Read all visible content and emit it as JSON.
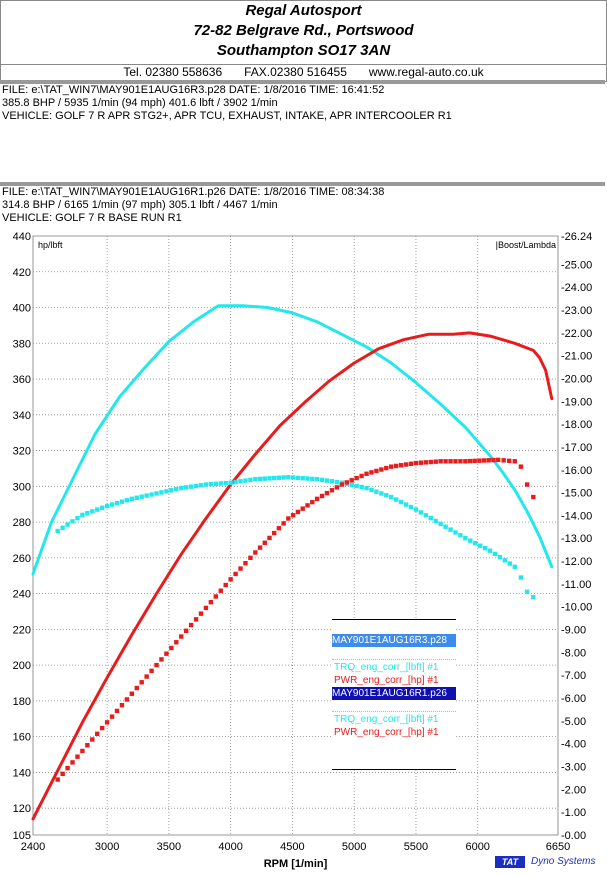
{
  "header": {
    "company": "Regal Autosport",
    "address1": "72-82 Belgrave Rd., Portswood",
    "address2": "Southampton SO17 3AN",
    "tel": "Tel. 02380 558636",
    "fax": "FAX.02380 516455",
    "web": "www.regal-auto.co.uk"
  },
  "runs": [
    {
      "file": "FILE: e:\\TAT_WIN7\\MAY901E1AUG16R3.p28  DATE: 1/8/2016  TIME: 16:41:52",
      "power": "385.8 BHP / 5935 1/min (94 mph)    401.6 lbft / 3902 1/min",
      "vehicle": "VEHICLE: GOLF 7 R APR STG2+, APR TCU, EXHAUST, INTAKE, APR INTERCOOLER R1"
    },
    {
      "file": "FILE: e:\\TAT_WIN7\\MAY901E1AUG16R1.p26  DATE: 1/8/2016  TIME: 08:34:38",
      "power": "314.8 BHP / 6165 1/min (97 mph)    305.1 lbft / 4467 1/min",
      "vehicle": "VEHICLE: GOLF 7 R BASE RUN R1"
    }
  ],
  "colors": {
    "torque": "#22e8ee",
    "power": "#e81c1c",
    "legend_file1_bg": "#3d8bea",
    "legend_file2_bg": "#1010b0",
    "logo": "#1b2fbf"
  },
  "chart_data": {
    "type": "line",
    "xlabel": "RPM  [1/min]",
    "ylabel": "hp/lbft",
    "y2label": "Boost/Lambda",
    "xlim": [
      2400,
      6650
    ],
    "ylim": [
      105,
      440
    ],
    "y2lim": [
      0,
      26.24
    ],
    "x_ticks": [
      2400,
      3000,
      3500,
      4000,
      4500,
      5000,
      5500,
      6000,
      6650
    ],
    "y_ticks": [
      105,
      120,
      140,
      160,
      180,
      200,
      220,
      240,
      260,
      280,
      300,
      320,
      340,
      360,
      380,
      400,
      420,
      440
    ],
    "y_tick_labels": [
      "105",
      "120",
      "140",
      "160",
      "180",
      "200",
      "220",
      "240",
      "260",
      "280",
      "300",
      "320",
      "340",
      "360",
      "380",
      "400",
      "420",
      "440"
    ],
    "y2_ticks": [
      0,
      1,
      2,
      3,
      4,
      5,
      6,
      7,
      8,
      9,
      10,
      11,
      12,
      13,
      14,
      15,
      16,
      17,
      18,
      19,
      20,
      21,
      22,
      23,
      24,
      25,
      26.24
    ],
    "y2_tick_labels": [
      "0.00",
      "1.00",
      "2.00",
      "3.00",
      "4.00",
      "5.00",
      "6.00",
      "7.00",
      "8.00",
      "9.00",
      "10.00",
      "11.00",
      "12.00",
      "13.00",
      "14.00",
      "15.00",
      "16.00",
      "17.00",
      "18.00",
      "19.00",
      "20.00",
      "21.00",
      "22.00",
      "23.00",
      "24.00",
      "25.00",
      "26.24"
    ],
    "series": [
      {
        "name": "TRQ_eng_corr_[lbft] #1",
        "file": "MAY901E1AUG16R3.p28",
        "color": "#22e8ee",
        "style": "solid",
        "x": [
          2400,
          2550,
          2700,
          2900,
          3100,
          3300,
          3500,
          3700,
          3900,
          4100,
          4300,
          4500,
          4700,
          4900,
          5100,
          5300,
          5500,
          5700,
          5900,
          6100,
          6200,
          6300,
          6400,
          6500,
          6600
        ],
        "y": [
          251,
          280,
          301,
          329,
          350,
          366,
          381,
          392,
          401,
          401,
          400,
          397,
          392,
          385,
          378,
          369,
          358,
          346,
          333,
          317,
          308,
          298,
          286,
          272,
          255
        ]
      },
      {
        "name": "PWR_eng_corr_[hp] #1",
        "file": "MAY901E1AUG16R3.p28",
        "color": "#e81c1c",
        "style": "solid",
        "x": [
          2400,
          2600,
          2800,
          3000,
          3200,
          3400,
          3600,
          3800,
          4000,
          4200,
          4400,
          4600,
          4800,
          5000,
          5200,
          5400,
          5600,
          5800,
          5935,
          6100,
          6300,
          6450,
          6500,
          6550,
          6600
        ],
        "y": [
          114,
          141,
          168,
          193,
          217,
          240,
          262,
          282,
          301,
          318,
          334,
          347,
          359,
          369,
          377,
          382,
          385,
          385,
          385.8,
          384,
          380,
          376,
          372,
          365,
          349
        ]
      },
      {
        "name": "TRQ_eng_corr_[lbft] #1",
        "file": "MAY901E1AUG16R1.p26",
        "color": "#22e8ee",
        "style": "dotted",
        "x": [
          2600,
          2800,
          3000,
          3200,
          3400,
          3600,
          3800,
          4000,
          4200,
          4467,
          4700,
          4900,
          5100,
          5300,
          5500,
          5700,
          5900,
          6100,
          6300,
          6350,
          6400,
          6450
        ],
        "y": [
          275,
          284,
          289,
          293,
          296,
          299,
          301,
          302,
          304,
          305.1,
          304,
          302,
          299,
          294,
          287,
          279,
          271,
          264,
          255,
          249,
          241,
          238
        ]
      },
      {
        "name": "PWR_eng_corr_[hp] #1",
        "file": "MAY901E1AUG16R1.p26",
        "color": "#e81c1c",
        "style": "dotted",
        "x": [
          2600,
          2800,
          3000,
          3200,
          3400,
          3600,
          3800,
          4000,
          4200,
          4467,
          4700,
          4900,
          5100,
          5300,
          5500,
          5700,
          5900,
          6165,
          6300,
          6350,
          6400,
          6450
        ],
        "y": [
          136,
          152,
          168,
          184,
          200,
          216,
          232,
          248,
          263,
          282,
          293,
          301,
          307,
          311,
          313,
          314,
          314,
          314.8,
          314,
          311,
          301,
          294
        ]
      }
    ]
  },
  "legend": {
    "file1": "MAY901E1AUG16R3.p28",
    "file1_trq": "TRQ_eng_corr_[lbft] #1",
    "file1_pwr": "PWR_eng_corr_[hp] #1",
    "file2": "MAY901E1AUG16R1.p26",
    "file2_trq": "TRQ_eng_corr_[lbft] #1",
    "file2_pwr": "PWR_eng_corr_[hp] #1"
  },
  "logo": {
    "mark": "TAT",
    "text": "Dyno Systems"
  }
}
